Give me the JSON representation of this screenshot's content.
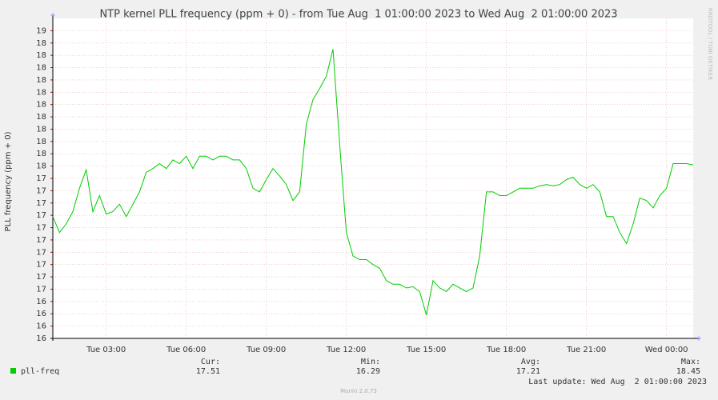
{
  "chart_data": {
    "type": "line",
    "title": "NTP kernel PLL frequency (ppm + 0) - from Tue Aug  1 01:00:00 2023 to Wed Aug  2 01:00:00 2023",
    "y_label": "PLL frequency (ppm + 0)",
    "side_label": "RRDTOOL / TOBI OETIKER",
    "grid": true,
    "xlim": [
      "2023-08-01T01:00",
      "2023-08-02T01:00"
    ],
    "xticks": [
      {
        "value": "2023-08-01T03:00",
        "label": "Tue 03:00"
      },
      {
        "value": "2023-08-01T06:00",
        "label": "Tue 06:00"
      },
      {
        "value": "2023-08-01T09:00",
        "label": "Tue 09:00"
      },
      {
        "value": "2023-08-01T12:00",
        "label": "Tue 12:00"
      },
      {
        "value": "2023-08-01T15:00",
        "label": "Tue 15:00"
      },
      {
        "value": "2023-08-01T18:00",
        "label": "Tue 18:00"
      },
      {
        "value": "2023-08-01T21:00",
        "label": "Tue 21:00"
      },
      {
        "value": "2023-08-02T00:00",
        "label": "Wed 00:00"
      }
    ],
    "ylim": [
      16.1,
      18.7
    ],
    "yticks": [
      {
        "value": 16.1,
        "label": "16"
      },
      {
        "value": 16.2,
        "label": "16"
      },
      {
        "value": 16.3,
        "label": "16"
      },
      {
        "value": 16.4,
        "label": "16"
      },
      {
        "value": 16.5,
        "label": "17"
      },
      {
        "value": 16.6,
        "label": "17"
      },
      {
        "value": 16.7,
        "label": "17"
      },
      {
        "value": 16.8,
        "label": "17"
      },
      {
        "value": 16.9,
        "label": "17"
      },
      {
        "value": 17.0,
        "label": "17"
      },
      {
        "value": 17.1,
        "label": "17"
      },
      {
        "value": 17.2,
        "label": "17"
      },
      {
        "value": 17.3,
        "label": "17"
      },
      {
        "value": 17.4,
        "label": "17"
      },
      {
        "value": 17.5,
        "label": "18"
      },
      {
        "value": 17.6,
        "label": "18"
      },
      {
        "value": 17.7,
        "label": "18"
      },
      {
        "value": 17.8,
        "label": "18"
      },
      {
        "value": 17.9,
        "label": "18"
      },
      {
        "value": 18.0,
        "label": "18"
      },
      {
        "value": 18.1,
        "label": "18"
      },
      {
        "value": 18.2,
        "label": "18"
      },
      {
        "value": 18.3,
        "label": "18"
      },
      {
        "value": 18.4,
        "label": "18"
      },
      {
        "value": 18.5,
        "label": "18"
      },
      {
        "value": 18.6,
        "label": "19"
      }
    ],
    "x": [
      "2023-08-01T01:00",
      "2023-08-01T01:15",
      "2023-08-01T01:30",
      "2023-08-01T01:45",
      "2023-08-01T02:00",
      "2023-08-01T02:15",
      "2023-08-01T02:30",
      "2023-08-01T02:45",
      "2023-08-01T03:00",
      "2023-08-01T03:15",
      "2023-08-01T03:30",
      "2023-08-01T03:45",
      "2023-08-01T04:00",
      "2023-08-01T04:15",
      "2023-08-01T04:30",
      "2023-08-01T04:45",
      "2023-08-01T05:00",
      "2023-08-01T05:15",
      "2023-08-01T05:30",
      "2023-08-01T05:45",
      "2023-08-01T06:00",
      "2023-08-01T06:15",
      "2023-08-01T06:30",
      "2023-08-01T06:45",
      "2023-08-01T07:00",
      "2023-08-01T07:15",
      "2023-08-01T07:30",
      "2023-08-01T07:45",
      "2023-08-01T08:00",
      "2023-08-01T08:15",
      "2023-08-01T08:30",
      "2023-08-01T08:45",
      "2023-08-01T09:00",
      "2023-08-01T09:15",
      "2023-08-01T09:30",
      "2023-08-01T09:45",
      "2023-08-01T10:00",
      "2023-08-01T10:15",
      "2023-08-01T10:30",
      "2023-08-01T10:45",
      "2023-08-01T11:00",
      "2023-08-01T11:15",
      "2023-08-01T11:30",
      "2023-08-01T11:45",
      "2023-08-01T12:00",
      "2023-08-01T12:15",
      "2023-08-01T12:30",
      "2023-08-01T12:45",
      "2023-08-01T13:00",
      "2023-08-01T13:15",
      "2023-08-01T13:30",
      "2023-08-01T13:45",
      "2023-08-01T14:00",
      "2023-08-01T14:15",
      "2023-08-01T14:30",
      "2023-08-01T14:45",
      "2023-08-01T15:00",
      "2023-08-01T15:15",
      "2023-08-01T15:30",
      "2023-08-01T15:45",
      "2023-08-01T16:00",
      "2023-08-01T16:15",
      "2023-08-01T16:30",
      "2023-08-01T16:45",
      "2023-08-01T17:00",
      "2023-08-01T17:15",
      "2023-08-01T17:30",
      "2023-08-01T17:45",
      "2023-08-01T18:00",
      "2023-08-01T18:15",
      "2023-08-01T18:30",
      "2023-08-01T18:45",
      "2023-08-01T19:00",
      "2023-08-01T19:15",
      "2023-08-01T19:30",
      "2023-08-01T19:45",
      "2023-08-01T20:00",
      "2023-08-01T20:15",
      "2023-08-01T20:30",
      "2023-08-01T20:45",
      "2023-08-01T21:00",
      "2023-08-01T21:15",
      "2023-08-01T21:30",
      "2023-08-01T21:45",
      "2023-08-01T22:00",
      "2023-08-01T22:15",
      "2023-08-01T22:30",
      "2023-08-01T22:45",
      "2023-08-01T23:00",
      "2023-08-01T23:15",
      "2023-08-01T23:30",
      "2023-08-01T23:45",
      "2023-08-02T00:00",
      "2023-08-02T00:15",
      "2023-08-02T00:30",
      "2023-08-02T00:45",
      "2023-08-02T01:00"
    ],
    "series": [
      {
        "name": "pll-freq",
        "color": "#00cc00",
        "values": [
          17.09,
          16.96,
          17.03,
          17.13,
          17.32,
          17.47,
          17.13,
          17.26,
          17.11,
          17.13,
          17.19,
          17.09,
          17.19,
          17.29,
          17.45,
          17.48,
          17.52,
          17.48,
          17.55,
          17.52,
          17.58,
          17.48,
          17.58,
          17.58,
          17.55,
          17.58,
          17.58,
          17.55,
          17.55,
          17.48,
          17.32,
          17.29,
          17.39,
          17.48,
          17.42,
          17.35,
          17.22,
          17.29,
          17.84,
          18.04,
          18.13,
          18.23,
          18.45,
          17.68,
          16.96,
          16.77,
          16.74,
          16.74,
          16.7,
          16.67,
          16.57,
          16.54,
          16.54,
          16.51,
          16.52,
          16.48,
          16.29,
          16.57,
          16.51,
          16.48,
          16.54,
          16.51,
          16.48,
          16.51,
          16.77,
          17.29,
          17.29,
          17.26,
          17.26,
          17.29,
          17.32,
          17.32,
          17.32,
          17.34,
          17.35,
          17.34,
          17.35,
          17.39,
          17.41,
          17.35,
          17.32,
          17.35,
          17.29,
          17.09,
          17.09,
          16.96,
          16.87,
          17.03,
          17.24,
          17.22,
          17.16,
          17.26,
          17.32,
          17.52,
          17.52,
          17.52,
          17.51
        ]
      }
    ],
    "legend_stats": [
      {
        "label": "Cur:",
        "value": "17.51"
      },
      {
        "label": "Min:",
        "value": "16.29"
      },
      {
        "label": "Avg:",
        "value": "17.21"
      },
      {
        "label": "Max:",
        "value": "18.45"
      }
    ],
    "last_update": "Last update: Wed Aug  2 01:00:00 2023",
    "footer": "Munin 2.0.73"
  }
}
